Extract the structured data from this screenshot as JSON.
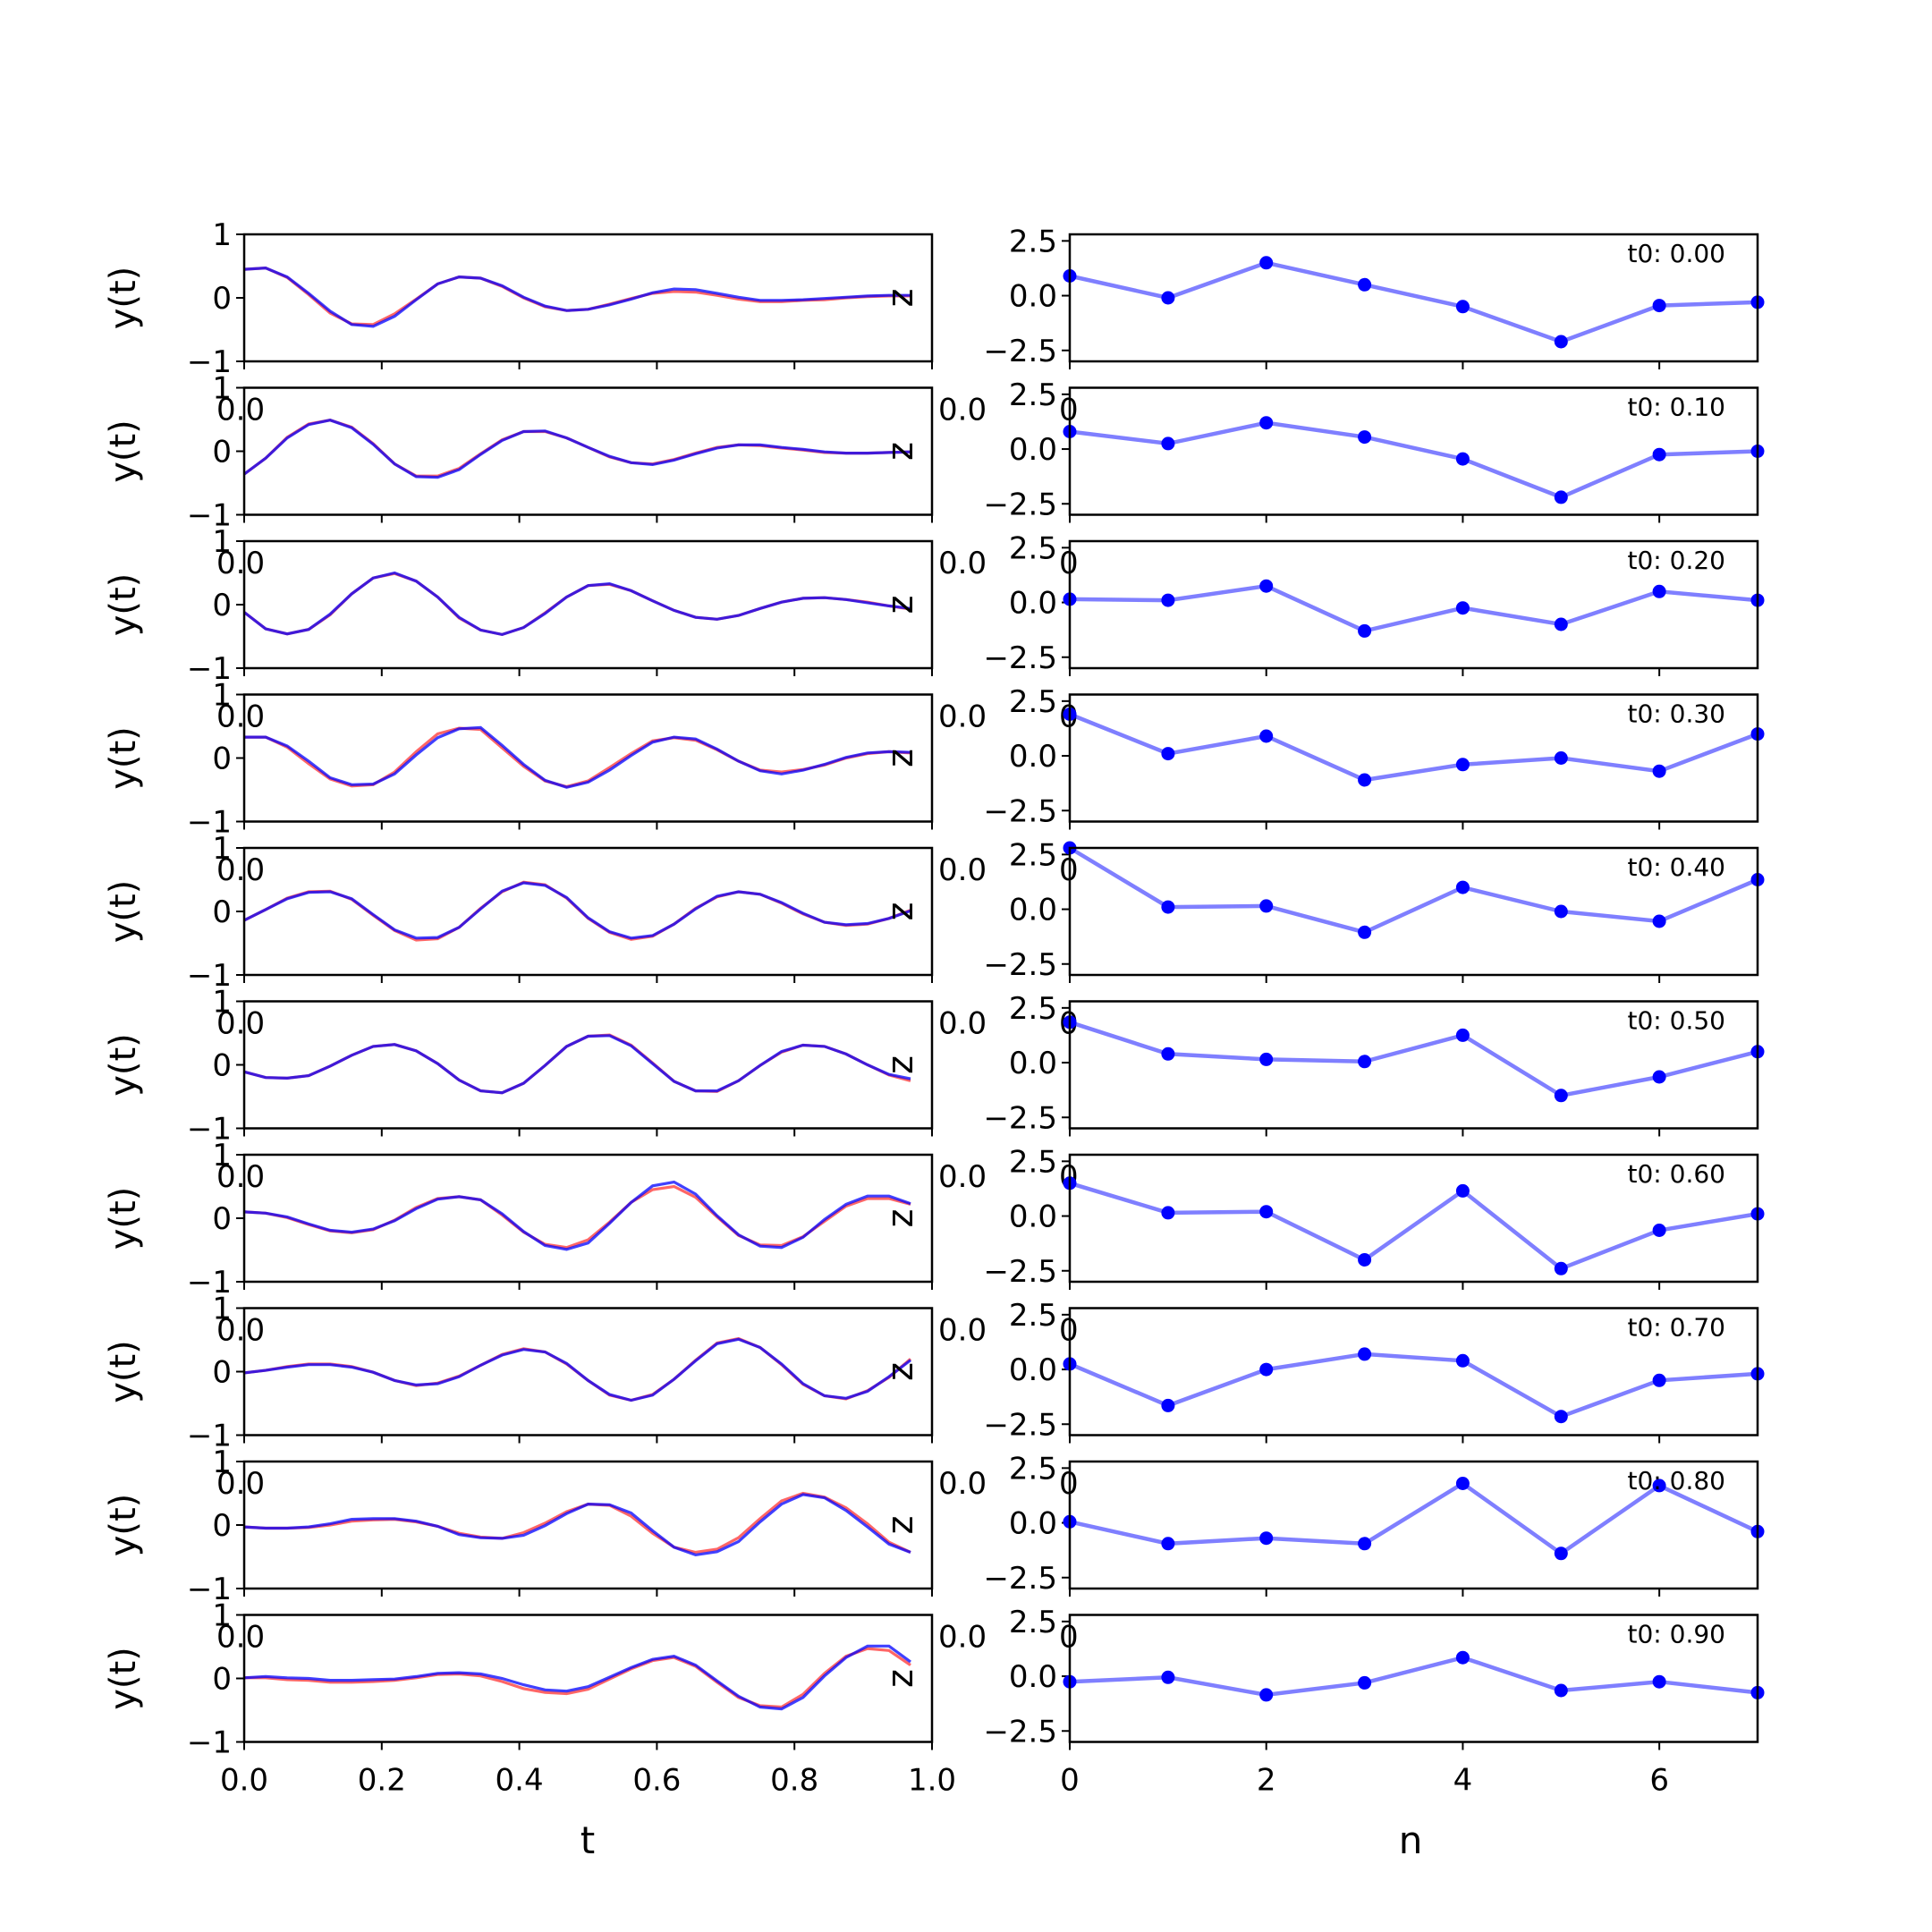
{
  "chart_data": [
    {
      "type": "line",
      "panel": "left",
      "title": "",
      "xlabel": "t",
      "ylabel": "y(t)",
      "side_label": "z",
      "xlim": [
        0,
        1
      ],
      "ylim": [
        -1,
        1
      ],
      "x_ticks": [
        "0.0",
        "0.2",
        "0.4",
        "0.6",
        "0.8",
        "1.0"
      ],
      "y_ticks": [
        "1",
        "0",
        "−1"
      ],
      "colors": {
        "series_a": "#ff0000",
        "series_b": "#0000ff",
        "overlap": "#800080"
      },
      "x": [
        0.0,
        0.03125,
        0.0625,
        0.09375,
        0.125,
        0.15625,
        0.1875,
        0.21875,
        0.25,
        0.28125,
        0.3125,
        0.34375,
        0.375,
        0.40625,
        0.4375,
        0.46875,
        0.5,
        0.53125,
        0.5625,
        0.59375,
        0.625,
        0.65625,
        0.6875,
        0.71875,
        0.75,
        0.78125,
        0.8125,
        0.84375,
        0.875,
        0.90625,
        0.9375,
        0.96875
      ],
      "rows": [
        {
          "a": [
            0.45,
            0.47,
            0.32,
            0.05,
            -0.24,
            -0.41,
            -0.42,
            -0.25,
            -0.02,
            0.22,
            0.33,
            0.31,
            0.18,
            0.0,
            -0.14,
            -0.2,
            -0.18,
            -0.1,
            -0.01,
            0.07,
            0.1,
            0.09,
            0.04,
            -0.02,
            -0.06,
            -0.06,
            -0.04,
            -0.03,
            0.0,
            0.02,
            0.03,
            0.03
          ],
          "b": [
            0.45,
            0.47,
            0.33,
            0.07,
            -0.21,
            -0.42,
            -0.45,
            -0.29,
            -0.03,
            0.22,
            0.33,
            0.31,
            0.19,
            0.01,
            -0.13,
            -0.2,
            -0.18,
            -0.11,
            -0.02,
            0.08,
            0.14,
            0.13,
            0.07,
            0.01,
            -0.04,
            -0.04,
            -0.03,
            -0.01,
            0.01,
            0.03,
            0.04,
            0.04
          ]
        },
        {
          "a": [
            -0.36,
            -0.11,
            0.22,
            0.43,
            0.49,
            0.38,
            0.12,
            -0.2,
            -0.39,
            -0.39,
            -0.27,
            -0.04,
            0.18,
            0.31,
            0.31,
            0.21,
            0.06,
            -0.09,
            -0.18,
            -0.2,
            -0.13,
            -0.03,
            0.06,
            0.1,
            0.09,
            0.05,
            0.02,
            -0.02,
            -0.03,
            -0.03,
            -0.02,
            -0.01
          ],
          "b": [
            -0.36,
            -0.11,
            0.21,
            0.42,
            0.49,
            0.37,
            0.11,
            -0.2,
            -0.4,
            -0.41,
            -0.29,
            -0.05,
            0.17,
            0.31,
            0.32,
            0.21,
            0.06,
            -0.08,
            -0.18,
            -0.21,
            -0.14,
            -0.04,
            0.05,
            0.1,
            0.1,
            0.06,
            0.03,
            -0.01,
            -0.03,
            -0.03,
            -0.02,
            -0.01
          ]
        },
        {
          "a": [
            -0.12,
            -0.38,
            -0.46,
            -0.39,
            -0.16,
            0.17,
            0.42,
            0.49,
            0.37,
            0.12,
            -0.21,
            -0.4,
            -0.47,
            -0.36,
            -0.13,
            0.12,
            0.3,
            0.32,
            0.22,
            0.06,
            -0.09,
            -0.2,
            -0.23,
            -0.17,
            -0.06,
            0.04,
            0.1,
            0.11,
            0.08,
            0.04,
            -0.02,
            -0.07
          ],
          "b": [
            -0.12,
            -0.38,
            -0.46,
            -0.39,
            -0.15,
            0.17,
            0.42,
            0.5,
            0.37,
            0.12,
            -0.2,
            -0.4,
            -0.47,
            -0.36,
            -0.14,
            0.12,
            0.3,
            0.33,
            0.22,
            0.06,
            -0.09,
            -0.2,
            -0.23,
            -0.17,
            -0.06,
            0.04,
            0.1,
            0.11,
            0.08,
            0.03,
            -0.02,
            -0.06
          ]
        },
        {
          "a": [
            0.33,
            0.33,
            0.17,
            -0.09,
            -0.33,
            -0.44,
            -0.42,
            -0.22,
            0.1,
            0.38,
            0.47,
            0.45,
            0.16,
            -0.13,
            -0.36,
            -0.45,
            -0.36,
            -0.15,
            0.07,
            0.27,
            0.32,
            0.28,
            0.13,
            -0.05,
            -0.19,
            -0.22,
            -0.18,
            -0.11,
            0.0,
            0.07,
            0.1,
            0.08
          ],
          "b": [
            0.33,
            0.33,
            0.19,
            -0.05,
            -0.31,
            -0.42,
            -0.41,
            -0.25,
            0.05,
            0.32,
            0.46,
            0.48,
            0.2,
            -0.1,
            -0.35,
            -0.46,
            -0.38,
            -0.19,
            0.04,
            0.25,
            0.33,
            0.3,
            0.14,
            -0.05,
            -0.2,
            -0.25,
            -0.19,
            -0.1,
            0.01,
            0.08,
            0.1,
            0.09
          ]
        },
        {
          "a": [
            -0.14,
            0.03,
            0.21,
            0.31,
            0.32,
            0.19,
            -0.06,
            -0.3,
            -0.45,
            -0.43,
            -0.25,
            0.05,
            0.31,
            0.46,
            0.42,
            0.21,
            -0.11,
            -0.33,
            -0.44,
            -0.39,
            -0.2,
            0.05,
            0.23,
            0.31,
            0.27,
            0.13,
            -0.04,
            -0.17,
            -0.22,
            -0.2,
            -0.11,
            0.02
          ],
          "b": [
            -0.14,
            0.03,
            0.2,
            0.3,
            0.31,
            0.2,
            -0.05,
            -0.29,
            -0.42,
            -0.41,
            -0.25,
            0.04,
            0.32,
            0.45,
            0.41,
            0.22,
            -0.1,
            -0.32,
            -0.42,
            -0.38,
            -0.2,
            0.04,
            0.24,
            0.31,
            0.27,
            0.14,
            -0.03,
            -0.17,
            -0.21,
            -0.19,
            -0.11,
            0.01
          ]
        },
        {
          "a": [
            -0.11,
            -0.2,
            -0.21,
            -0.17,
            -0.02,
            0.15,
            0.29,
            0.32,
            0.22,
            0.02,
            -0.24,
            -0.41,
            -0.44,
            -0.29,
            -0.01,
            0.29,
            0.45,
            0.47,
            0.31,
            0.03,
            -0.26,
            -0.41,
            -0.42,
            -0.25,
            -0.01,
            0.2,
            0.31,
            0.29,
            0.17,
            0.0,
            -0.16,
            -0.25
          ],
          "b": [
            -0.11,
            -0.2,
            -0.21,
            -0.17,
            -0.02,
            0.15,
            0.29,
            0.32,
            0.22,
            0.02,
            -0.24,
            -0.41,
            -0.44,
            -0.29,
            -0.01,
            0.29,
            0.45,
            0.46,
            0.3,
            0.02,
            -0.26,
            -0.41,
            -0.41,
            -0.25,
            -0.01,
            0.21,
            0.31,
            0.29,
            0.17,
            0.0,
            -0.15,
            -0.22
          ]
        },
        {
          "a": [
            0.1,
            0.08,
            0.01,
            -0.1,
            -0.2,
            -0.23,
            -0.18,
            -0.03,
            0.17,
            0.31,
            0.34,
            0.29,
            0.05,
            -0.22,
            -0.41,
            -0.46,
            -0.34,
            -0.06,
            0.25,
            0.45,
            0.5,
            0.33,
            0.02,
            -0.27,
            -0.42,
            -0.43,
            -0.29,
            -0.05,
            0.19,
            0.31,
            0.31,
            0.22
          ],
          "b": [
            0.1,
            0.08,
            0.02,
            -0.09,
            -0.19,
            -0.22,
            -0.17,
            -0.04,
            0.15,
            0.3,
            0.34,
            0.29,
            0.07,
            -0.21,
            -0.43,
            -0.49,
            -0.39,
            -0.08,
            0.25,
            0.51,
            0.57,
            0.38,
            0.04,
            -0.26,
            -0.44,
            -0.46,
            -0.3,
            -0.02,
            0.22,
            0.35,
            0.35,
            0.23
          ]
        },
        {
          "a": [
            -0.02,
            0.02,
            0.08,
            0.12,
            0.12,
            0.08,
            -0.01,
            -0.14,
            -0.22,
            -0.18,
            -0.07,
            0.1,
            0.27,
            0.36,
            0.31,
            0.12,
            -0.14,
            -0.37,
            -0.45,
            -0.36,
            -0.12,
            0.18,
            0.45,
            0.52,
            0.38,
            0.11,
            -0.2,
            -0.38,
            -0.43,
            -0.3,
            -0.09,
            0.2
          ],
          "b": [
            -0.02,
            0.02,
            0.07,
            0.11,
            0.11,
            0.07,
            -0.01,
            -0.14,
            -0.21,
            -0.19,
            -0.08,
            0.1,
            0.26,
            0.35,
            0.31,
            0.13,
            -0.14,
            -0.36,
            -0.45,
            -0.37,
            -0.12,
            0.17,
            0.44,
            0.51,
            0.38,
            0.12,
            -0.19,
            -0.38,
            -0.42,
            -0.31,
            -0.08,
            0.18
          ]
        },
        {
          "a": [
            -0.03,
            -0.05,
            -0.05,
            -0.04,
            0.0,
            0.06,
            0.08,
            0.09,
            0.05,
            -0.02,
            -0.13,
            -0.19,
            -0.21,
            -0.12,
            0.03,
            0.21,
            0.33,
            0.31,
            0.14,
            -0.13,
            -0.35,
            -0.43,
            -0.38,
            -0.2,
            0.1,
            0.38,
            0.5,
            0.44,
            0.27,
            0.02,
            -0.27,
            -0.43
          ],
          "b": [
            -0.03,
            -0.05,
            -0.05,
            -0.03,
            0.02,
            0.09,
            0.1,
            0.1,
            0.06,
            -0.02,
            -0.15,
            -0.2,
            -0.21,
            -0.16,
            -0.01,
            0.18,
            0.33,
            0.32,
            0.19,
            -0.09,
            -0.35,
            -0.47,
            -0.42,
            -0.26,
            0.05,
            0.33,
            0.48,
            0.43,
            0.23,
            -0.03,
            -0.3,
            -0.43
          ]
        },
        {
          "a": [
            0.01,
            0.01,
            -0.02,
            -0.03,
            -0.06,
            -0.06,
            -0.05,
            -0.03,
            0.01,
            0.06,
            0.07,
            0.04,
            -0.05,
            -0.16,
            -0.22,
            -0.24,
            -0.17,
            -0.01,
            0.15,
            0.28,
            0.33,
            0.19,
            -0.06,
            -0.3,
            -0.43,
            -0.45,
            -0.25,
            0.08,
            0.35,
            0.47,
            0.44,
            0.21
          ],
          "b": [
            0.01,
            0.03,
            0.01,
            0.0,
            -0.03,
            -0.03,
            -0.02,
            -0.01,
            0.03,
            0.08,
            0.09,
            0.07,
            0.0,
            -0.1,
            -0.18,
            -0.2,
            -0.13,
            0.02,
            0.17,
            0.3,
            0.35,
            0.21,
            -0.04,
            -0.28,
            -0.45,
            -0.48,
            -0.3,
            0.04,
            0.33,
            0.51,
            0.51,
            0.26
          ]
        }
      ]
    },
    {
      "type": "line",
      "panel": "right",
      "title": "",
      "xlabel": "n",
      "ylabel": "",
      "xlim": [
        0,
        7
      ],
      "ylim": [
        -3,
        2.8
      ],
      "x_ticks": [
        "0",
        "2",
        "4",
        "6"
      ],
      "y_ticks": [
        "2.5",
        "0.0",
        "−2.5"
      ],
      "colors": {
        "line": "#0000ff",
        "marker": "#0000ff"
      },
      "x": [
        0,
        1,
        2,
        3,
        4,
        5,
        6,
        7
      ],
      "rows": [
        {
          "annotation": "t0: 0.00",
          "values": [
            0.9,
            -0.1,
            1.5,
            0.5,
            -0.5,
            -2.1,
            -0.45,
            -0.3
          ]
        },
        {
          "annotation": "t0: 0.10",
          "values": [
            0.8,
            0.25,
            1.2,
            0.55,
            -0.45,
            -2.2,
            -0.25,
            -0.1
          ]
        },
        {
          "annotation": "t0: 0.20",
          "values": [
            0.15,
            0.1,
            0.75,
            -1.3,
            -0.25,
            -1.0,
            0.5,
            0.1
          ]
        },
        {
          "annotation": "t0: 0.30",
          "values": [
            1.9,
            0.1,
            0.9,
            -1.1,
            -0.4,
            -0.1,
            -0.7,
            1.0
          ]
        },
        {
          "annotation": "t0: 0.40",
          "values": [
            2.8,
            0.1,
            0.15,
            -1.05,
            1.0,
            -0.1,
            -0.55,
            1.35
          ]
        },
        {
          "annotation": "t0: 0.50",
          "values": [
            1.85,
            0.4,
            0.15,
            0.05,
            1.25,
            -1.5,
            -0.65,
            0.5
          ]
        },
        {
          "annotation": "t0: 0.60",
          "values": [
            1.5,
            0.15,
            0.2,
            -2.0,
            1.15,
            -2.4,
            -0.65,
            0.1
          ]
        },
        {
          "annotation": "t0: 0.70",
          "values": [
            0.25,
            -1.65,
            0.0,
            0.7,
            0.4,
            -2.15,
            -0.5,
            -0.2
          ]
        },
        {
          "annotation": "t0: 0.80",
          "values": [
            0.05,
            -0.95,
            -0.7,
            -0.95,
            1.8,
            -1.4,
            1.7,
            -0.4
          ]
        },
        {
          "annotation": "t0: 0.90",
          "values": [
            -0.25,
            -0.05,
            -0.85,
            -0.3,
            0.85,
            -0.65,
            -0.25,
            -0.75
          ]
        }
      ]
    }
  ]
}
